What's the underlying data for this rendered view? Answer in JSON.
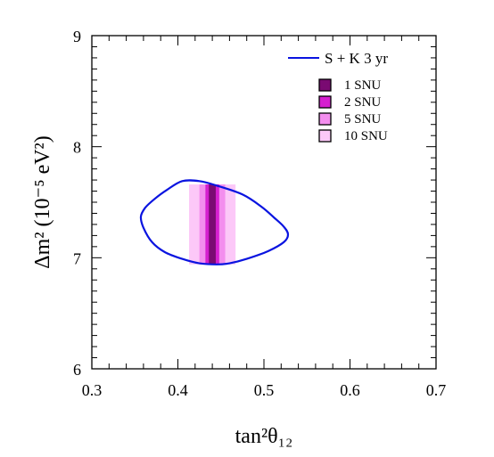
{
  "chart_data": {
    "type": "contour",
    "xlabel": "tan²θ₁₂",
    "ylabel": "Δm² (10⁻⁵ eV²)",
    "xlim": [
      0.3,
      0.7
    ],
    "ylim": [
      6,
      9
    ],
    "xticks": [
      0.3,
      0.4,
      0.5,
      0.6,
      0.7
    ],
    "yticks": [
      6,
      7,
      8,
      9
    ],
    "xtick_labels": [
      "0.3",
      "0.4",
      "0.5",
      "0.6",
      "0.7"
    ],
    "ytick_labels": [
      "6",
      "7",
      "8",
      "9"
    ],
    "contour": {
      "label": "S + K 3 yr",
      "color": "#0a14e0",
      "points": [
        [
          0.405,
          7.69
        ],
        [
          0.425,
          7.69
        ],
        [
          0.445,
          7.65
        ],
        [
          0.475,
          7.57
        ],
        [
          0.497,
          7.46
        ],
        [
          0.512,
          7.36
        ],
        [
          0.523,
          7.28
        ],
        [
          0.528,
          7.21
        ],
        [
          0.523,
          7.14
        ],
        [
          0.505,
          7.06
        ],
        [
          0.48,
          6.99
        ],
        [
          0.46,
          6.95
        ],
        [
          0.445,
          6.94
        ],
        [
          0.425,
          6.95
        ],
        [
          0.405,
          6.99
        ],
        [
          0.385,
          7.05
        ],
        [
          0.37,
          7.14
        ],
        [
          0.36,
          7.27
        ],
        [
          0.357,
          7.37
        ],
        [
          0.362,
          7.45
        ],
        [
          0.373,
          7.53
        ],
        [
          0.387,
          7.61
        ]
      ]
    },
    "bands": [
      {
        "label": "10 SNU",
        "color": "#fcc8f8",
        "x_range": [
          0.413,
          0.467
        ],
        "y_range": [
          6.94,
          7.66
        ]
      },
      {
        "label": "5 SNU",
        "color": "#f38eee",
        "x_range": [
          0.425,
          0.455
        ],
        "y_range": [
          6.94,
          7.66
        ]
      },
      {
        "label": "2 SNU",
        "color": "#d51fcf",
        "x_range": [
          0.432,
          0.448
        ],
        "y_range": [
          6.94,
          7.66
        ]
      },
      {
        "label": "1 SNU",
        "color": "#7a0a72",
        "x_range": [
          0.436,
          0.444
        ],
        "y_range": [
          6.94,
          7.66
        ]
      }
    ],
    "legend_entries": [
      {
        "label": "1 SNU",
        "color": "#7a0a72"
      },
      {
        "label": "2 SNU",
        "color": "#d51fcf"
      },
      {
        "label": "5 SNU",
        "color": "#f38eee"
      },
      {
        "label": "10 SNU",
        "color": "#fcc8f8"
      }
    ],
    "legend_position": "top-right",
    "grid": false
  }
}
